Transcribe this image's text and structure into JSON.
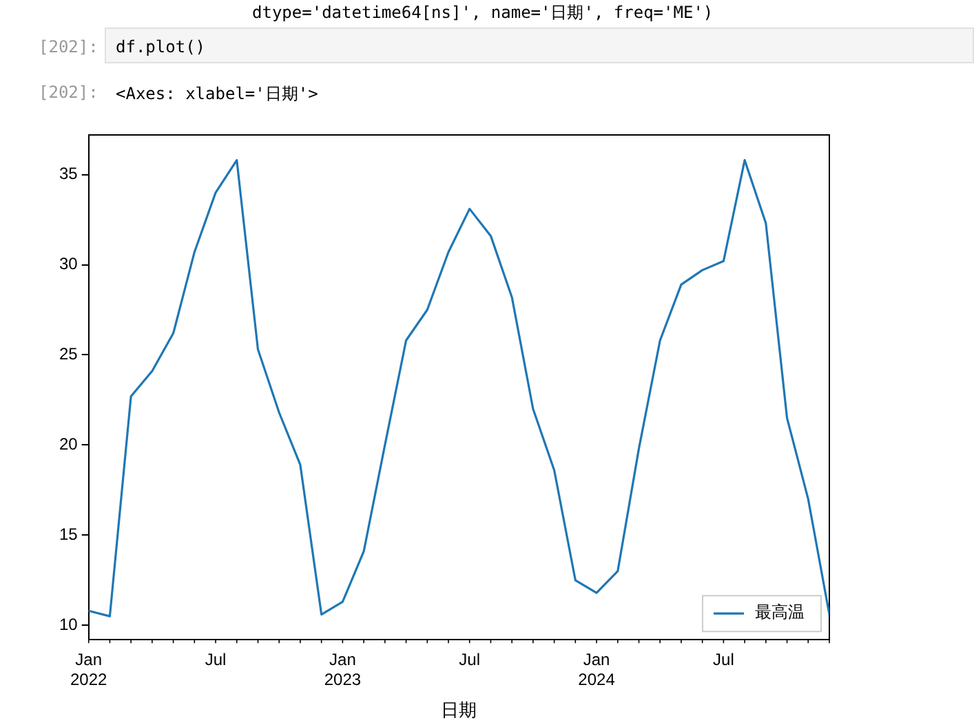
{
  "chart_data": {
    "type": "line",
    "xlabel": "日期",
    "annotations": [
      "dtype='datetime64[ns]', name='日期', freq='ME')",
      "[202]:",
      "df.plot()",
      "[202]:",
      "<Axes: xlabel='日期'>"
    ],
    "x": [
      "2022-01",
      "2022-02",
      "2022-03",
      "2022-04",
      "2022-05",
      "2022-06",
      "2022-07",
      "2022-08",
      "2022-09",
      "2022-10",
      "2022-11",
      "2022-12",
      "2023-01",
      "2023-02",
      "2023-03",
      "2023-04",
      "2023-05",
      "2023-06",
      "2023-07",
      "2023-08",
      "2023-09",
      "2023-10",
      "2023-11",
      "2023-12",
      "2024-01",
      "2024-02",
      "2024-03",
      "2024-04",
      "2024-05",
      "2024-06",
      "2024-07",
      "2024-08",
      "2024-09",
      "2024-10",
      "2024-11",
      "2024-12"
    ],
    "series": [
      {
        "name": "最高温",
        "color": "#1f77b4",
        "values": [
          10.8,
          10.5,
          22.7,
          24.1,
          26.2,
          30.7,
          34.0,
          35.8,
          25.3,
          21.8,
          18.9,
          10.6,
          11.3,
          14.1,
          20.0,
          25.8,
          27.5,
          30.7,
          33.1,
          31.6,
          28.2,
          22.0,
          18.6,
          12.5,
          11.8,
          13.0,
          19.8,
          25.8,
          28.9,
          29.7,
          30.2,
          35.8,
          32.3,
          21.5,
          17.0,
          10.6
        ]
      }
    ],
    "xlim": [
      "2022-01",
      "2024-12"
    ],
    "xticks": [
      {
        "value": "2022-01",
        "label": "Jan\n2022"
      },
      {
        "value": "2022-07",
        "label": "Jul"
      },
      {
        "value": "2023-01",
        "label": "Jan\n2023"
      },
      {
        "value": "2023-07",
        "label": "Jul"
      },
      {
        "value": "2024-01",
        "label": "Jan\n2024"
      },
      {
        "value": "2024-07",
        "label": "Jul"
      }
    ],
    "ylim": [
      9.2,
      37.2
    ],
    "yticks": [
      10,
      15,
      20,
      25,
      30,
      35
    ],
    "legend": "bottom right",
    "grid": false
  }
}
